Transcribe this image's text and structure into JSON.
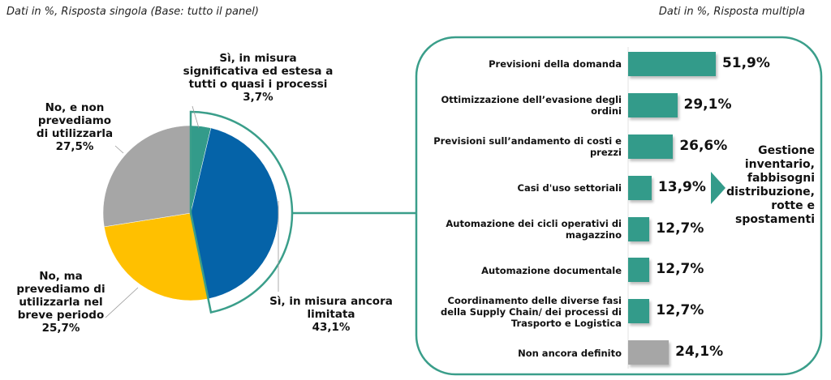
{
  "notes": {
    "left": "Dati in %, Risposta singola (Base: tutto il panel)",
    "right": "Dati in %, Risposta multipla"
  },
  "colors": {
    "teal": "#339B8A",
    "blue": "#0563A8",
    "yellow": "#FFC000",
    "grey": "#A6A6A6",
    "outline": "#3A9E8A"
  },
  "pie": {
    "slices": [
      {
        "label_lines": [
          "Sì, in misura",
          "significativa ed estesa a",
          "tutti o quasi i processi"
        ],
        "value_text": "3,7%"
      },
      {
        "label_lines": [
          "Sì, in misura ancora",
          "limitata"
        ],
        "value_text": "43,1%"
      },
      {
        "label_lines": [
          "No, ma",
          "prevediamo di",
          "utilizzarla nel",
          "breve periodo"
        ],
        "value_text": "25,7%"
      },
      {
        "label_lines": [
          "No, e non",
          "prevediamo",
          "di utilizzarla"
        ],
        "value_text": "27,5%"
      }
    ]
  },
  "bars": {
    "items": [
      {
        "label": "Previsioni della domanda",
        "value_text": "51,9%"
      },
      {
        "label": "Ottimizzazione dell’evasione degli ordini",
        "value_text": "29,1%"
      },
      {
        "label": "Previsioni sull’andamento di costi e prezzi",
        "value_text": "26,6%"
      },
      {
        "label": "Casi d'uso settoriali",
        "value_text": "13,9%"
      },
      {
        "label": "Automazione dei cicli operativi di magazzino",
        "value_text": "12,7%"
      },
      {
        "label": "Automazione documentale",
        "value_text": "12,7%"
      },
      {
        "label": "Coordinamento delle diverse fasi della Supply Chain/ dei processi di Trasporto e Logistica",
        "value_text": "12,7%"
      },
      {
        "label": "Non ancora definito",
        "value_text": "24,1%"
      }
    ],
    "side_note": "Gestione inventario, fabbisogni distribuzione, rotte e spostamenti"
  },
  "chart_data": [
    {
      "type": "pie",
      "title": "",
      "subtitle": "Dati in %, Risposta singola (Base: tutto il panel)",
      "categories": [
        "Sì, in misura significativa ed estesa a tutti o quasi i processi",
        "Sì, in misura ancora limitata",
        "No, ma prevediamo di utilizzarla nel breve periodo",
        "No, e non prevediamo di utilizzarla"
      ],
      "values": [
        3.7,
        43.1,
        25.7,
        27.5
      ],
      "colors": [
        "#339B8A",
        "#0563A8",
        "#FFC000",
        "#A6A6A6"
      ],
      "annotations": [
        "The 'Sì' slices (3,7% + 43,1%) are outlined and connected to the bar chart"
      ]
    },
    {
      "type": "bar",
      "orientation": "horizontal",
      "subtitle": "Dati in %, Risposta multipla",
      "categories": [
        "Previsioni della domanda",
        "Ottimizzazione dell’evasione degli ordini",
        "Previsioni sull’andamento di costi e prezzi",
        "Casi d'uso settoriali",
        "Automazione dei cicli operativi di magazzino",
        "Automazione documentale",
        "Coordinamento delle diverse fasi della Supply Chain/ dei processi di Trasporto e Logistica",
        "Non ancora definito"
      ],
      "values": [
        51.9,
        29.1,
        26.6,
        13.9,
        12.7,
        12.7,
        12.7,
        24.1
      ],
      "bar_colors": [
        "#339B8A",
        "#339B8A",
        "#339B8A",
        "#339B8A",
        "#339B8A",
        "#339B8A",
        "#339B8A",
        "#A6A6A6"
      ],
      "annotations": [
        "Casi d'uso settoriali → Gestione inventario, fabbisogni distribuzione, rotte e spostamenti"
      ],
      "grid": false
    }
  ]
}
